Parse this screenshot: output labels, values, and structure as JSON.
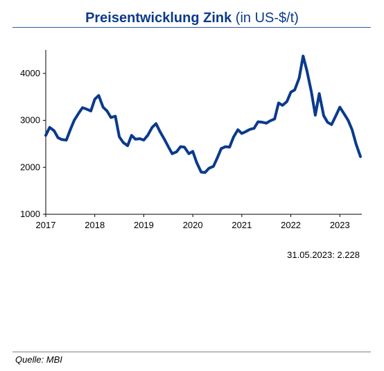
{
  "title": {
    "main": "Preisentwicklung Zink",
    "unit": "(in US-$/t)"
  },
  "annotation": "31.05.2023: 2.228",
  "source": "Quelle: MBI",
  "colors": {
    "series": "#0a3a8c",
    "title": "#0a3a8c"
  },
  "chart_data": {
    "type": "line",
    "title": "Preisentwicklung Zink",
    "xlabel": "",
    "ylabel": "",
    "xlim": [
      2017.0,
      2023.42
    ],
    "ylim": [
      1000,
      4500
    ],
    "yticks": [
      1000,
      2000,
      3000,
      4000
    ],
    "xticks": [
      2017,
      2018,
      2019,
      2020,
      2021,
      2022,
      2023
    ],
    "grid": false,
    "legend": "none",
    "series": [
      {
        "x": [
          2017.0,
          2017.08,
          2017.17,
          2017.25,
          2017.33,
          2017.42,
          2017.5,
          2017.58,
          2017.67,
          2017.75,
          2017.83,
          2017.92,
          2018.0,
          2018.08,
          2018.17,
          2018.25,
          2018.33,
          2018.42,
          2018.5,
          2018.58,
          2018.67,
          2018.75,
          2018.83,
          2018.92,
          2019.0,
          2019.08,
          2019.17,
          2019.25,
          2019.33,
          2019.42,
          2019.5,
          2019.58,
          2019.67,
          2019.75,
          2019.83,
          2019.92,
          2020.0,
          2020.08,
          2020.17,
          2020.25,
          2020.33,
          2020.42,
          2020.5,
          2020.58,
          2020.67,
          2020.75,
          2020.83,
          2020.92,
          2021.0,
          2021.08,
          2021.17,
          2021.25,
          2021.33,
          2021.42,
          2021.5,
          2021.58,
          2021.67,
          2021.75,
          2021.83,
          2021.92,
          2022.0,
          2022.08,
          2022.17,
          2022.25,
          2022.33,
          2022.42,
          2022.5,
          2022.58,
          2022.67,
          2022.75,
          2022.83,
          2022.92,
          2023.0,
          2023.08,
          2023.17,
          2023.25,
          2023.33,
          2023.42
        ],
        "values": [
          2680,
          2850,
          2780,
          2630,
          2590,
          2580,
          2800,
          3000,
          3150,
          3270,
          3240,
          3200,
          3450,
          3530,
          3280,
          3200,
          3060,
          3090,
          2650,
          2530,
          2460,
          2680,
          2600,
          2610,
          2580,
          2680,
          2850,
          2930,
          2760,
          2600,
          2440,
          2290,
          2330,
          2440,
          2430,
          2290,
          2340,
          2100,
          1900,
          1890,
          1980,
          2020,
          2200,
          2400,
          2440,
          2430,
          2640,
          2800,
          2720,
          2760,
          2810,
          2830,
          2970,
          2960,
          2940,
          2990,
          3030,
          3370,
          3320,
          3400,
          3600,
          3650,
          3900,
          4370,
          4050,
          3600,
          3110,
          3570,
          3100,
          2960,
          2910,
          3100,
          3280,
          3150,
          3000,
          2800,
          2500,
          2228
        ]
      }
    ]
  }
}
